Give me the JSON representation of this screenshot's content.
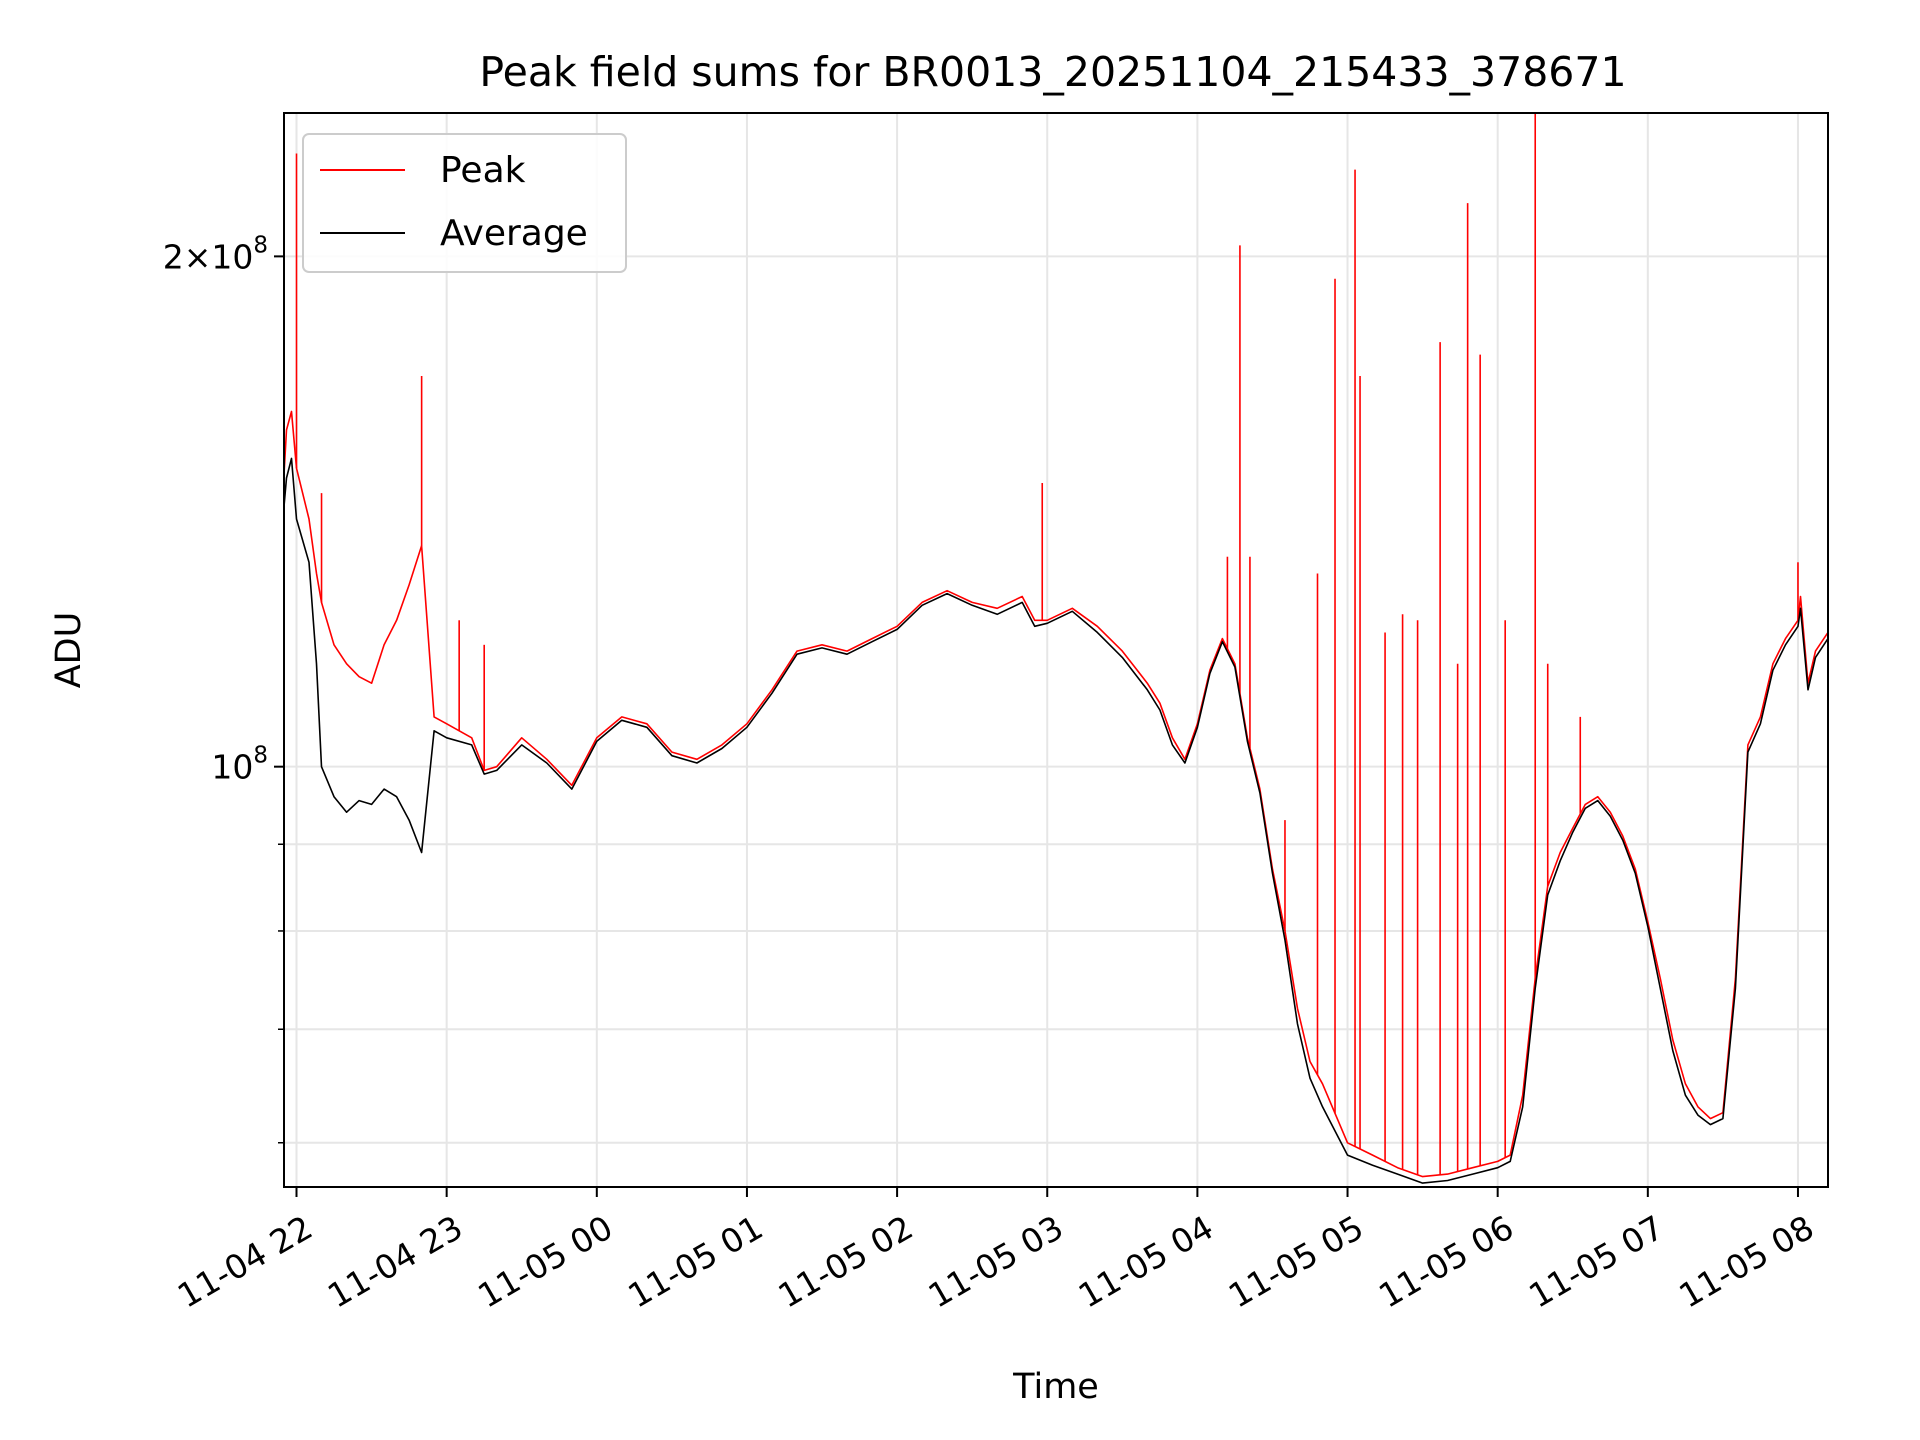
{
  "chart_data": {
    "type": "line",
    "title": "Peak field sums for BR0013_20251104_215433_378671",
    "xlabel": "Time",
    "ylabel": "ADU",
    "x_ticks": [
      "11-04 22",
      "11-04 23",
      "11-05 00",
      "11-05 01",
      "11-05 02",
      "11-05 03",
      "11-05 04",
      "11-05 05",
      "11-05 06",
      "11-05 07",
      "11-05 08"
    ],
    "y_tick_labels": [
      {
        "value": 100000000,
        "base": "10",
        "exp": "8"
      },
      {
        "value": 200000000,
        "prefix": "2×",
        "base": "10",
        "exp": "8"
      }
    ],
    "y_scale": "log",
    "ylim": [
      56500000,
      243000000
    ],
    "y_minor_ticks": [
      60000000,
      70000000,
      80000000,
      90000000
    ],
    "xlim": [
      "2025-11-04 21:55",
      "2025-11-05 08:12"
    ],
    "grid": true,
    "legend_position": "top-left",
    "series": [
      {
        "name": "Peak",
        "color": "#ff0000",
        "x": [
          "2025-11-04 21:54",
          "2025-11-04 21:56",
          "2025-11-04 21:58",
          "2025-11-04 22:00",
          "2025-11-04 22:05",
          "2025-11-04 22:08",
          "2025-11-04 22:10",
          "2025-11-04 22:15",
          "2025-11-04 22:20",
          "2025-11-04 22:25",
          "2025-11-04 22:30",
          "2025-11-04 22:35",
          "2025-11-04 22:40",
          "2025-11-04 22:45",
          "2025-11-04 22:50",
          "2025-11-04 22:55",
          "2025-11-04 23:00",
          "2025-11-04 23:10",
          "2025-11-04 23:15",
          "2025-11-04 23:20",
          "2025-11-04 23:30",
          "2025-11-04 23:40",
          "2025-11-04 23:50",
          "2025-11-05 00:00",
          "2025-11-05 00:10",
          "2025-11-05 00:20",
          "2025-11-05 00:30",
          "2025-11-05 00:40",
          "2025-11-05 00:50",
          "2025-11-05 01:00",
          "2025-11-05 01:10",
          "2025-11-05 01:20",
          "2025-11-05 01:30",
          "2025-11-05 01:40",
          "2025-11-05 01:50",
          "2025-11-05 02:00",
          "2025-11-05 02:10",
          "2025-11-05 02:20",
          "2025-11-05 02:30",
          "2025-11-05 02:40",
          "2025-11-05 02:50",
          "2025-11-05 02:55",
          "2025-11-05 03:00",
          "2025-11-05 03:10",
          "2025-11-05 03:20",
          "2025-11-05 03:30",
          "2025-11-05 03:40",
          "2025-11-05 03:45",
          "2025-11-05 03:50",
          "2025-11-05 03:55",
          "2025-11-05 04:00",
          "2025-11-05 04:05",
          "2025-11-05 04:10",
          "2025-11-05 04:15",
          "2025-11-05 04:20",
          "2025-11-05 04:25",
          "2025-11-05 04:30",
          "2025-11-05 04:35",
          "2025-11-05 04:40",
          "2025-11-05 04:45",
          "2025-11-05 04:50",
          "2025-11-05 05:00",
          "2025-11-05 05:10",
          "2025-11-05 05:20",
          "2025-11-05 05:30",
          "2025-11-05 05:40",
          "2025-11-05 05:50",
          "2025-11-05 06:00",
          "2025-11-05 06:05",
          "2025-11-05 06:10",
          "2025-11-05 06:15",
          "2025-11-05 06:20",
          "2025-11-05 06:25",
          "2025-11-05 06:30",
          "2025-11-05 06:35",
          "2025-11-05 06:40",
          "2025-11-05 06:45",
          "2025-11-05 06:50",
          "2025-11-05 06:55",
          "2025-11-05 07:00",
          "2025-11-05 07:05",
          "2025-11-05 07:10",
          "2025-11-05 07:15",
          "2025-11-05 07:20",
          "2025-11-05 07:25",
          "2025-11-05 07:30",
          "2025-11-05 07:35",
          "2025-11-05 07:40",
          "2025-11-05 07:45",
          "2025-11-05 07:50",
          "2025-11-05 07:55",
          "2025-11-05 08:00",
          "2025-11-05 08:01",
          "2025-11-05 08:04",
          "2025-11-05 08:07",
          "2025-11-05 08:12"
        ],
        "y": [
          140000000,
          158000000,
          162000000,
          150000000,
          140000000,
          130000000,
          125000000,
          118000000,
          115000000,
          113000000,
          112000000,
          118000000,
          122000000,
          128000000,
          135000000,
          107000000,
          106000000,
          104000000,
          99500000,
          100000000,
          104000000,
          101000000,
          97500000,
          104000000,
          107000000,
          106000000,
          102000000,
          101000000,
          103000000,
          106000000,
          111000000,
          117000000,
          118000000,
          117000000,
          119000000,
          121000000,
          125000000,
          127000000,
          125000000,
          124000000,
          126000000,
          122000000,
          122000000,
          124000000,
          121000000,
          117000000,
          112000000,
          109000000,
          104000000,
          101000000,
          106000000,
          114000000,
          119000000,
          115000000,
          104000000,
          97000000,
          87000000,
          80000000,
          72000000,
          67000000,
          65000000,
          60000000,
          59000000,
          58000000,
          57300000,
          57500000,
          58000000,
          58500000,
          59000000,
          64000000,
          75000000,
          85000000,
          89000000,
          92000000,
          95000000,
          96000000,
          94000000,
          91000000,
          87000000,
          81000000,
          75000000,
          69000000,
          65000000,
          63000000,
          62000000,
          62500000,
          75000000,
          103000000,
          107000000,
          115000000,
          119000000,
          122000000,
          126000000,
          112000000,
          117000000,
          120000000
        ],
        "spikes": [
          {
            "x": "2025-11-04 22:00",
            "y": 230000000
          },
          {
            "x": "2025-11-04 22:10",
            "y": 145000000
          },
          {
            "x": "2025-11-04 22:50",
            "y": 170000000
          },
          {
            "x": "2025-11-04 23:05",
            "y": 122000000
          },
          {
            "x": "2025-11-04 23:15",
            "y": 118000000
          },
          {
            "x": "2025-11-05 02:58",
            "y": 147000000
          },
          {
            "x": "2025-11-05 04:12",
            "y": 133000000
          },
          {
            "x": "2025-11-05 04:17",
            "y": 203000000
          },
          {
            "x": "2025-11-05 04:21",
            "y": 133000000
          },
          {
            "x": "2025-11-05 04:35",
            "y": 93000000
          },
          {
            "x": "2025-11-05 04:48",
            "y": 130000000
          },
          {
            "x": "2025-11-05 04:55",
            "y": 194000000
          },
          {
            "x": "2025-11-05 05:03",
            "y": 225000000
          },
          {
            "x": "2025-11-05 05:05",
            "y": 170000000
          },
          {
            "x": "2025-11-05 05:15",
            "y": 120000000
          },
          {
            "x": "2025-11-05 05:22",
            "y": 123000000
          },
          {
            "x": "2025-11-05 05:28",
            "y": 122000000
          },
          {
            "x": "2025-11-05 05:37",
            "y": 178000000
          },
          {
            "x": "2025-11-05 05:44",
            "y": 115000000
          },
          {
            "x": "2025-11-05 05:48",
            "y": 215000000
          },
          {
            "x": "2025-11-05 05:53",
            "y": 175000000
          },
          {
            "x": "2025-11-05 06:03",
            "y": 122000000
          },
          {
            "x": "2025-11-05 06:15",
            "y": 248000000
          },
          {
            "x": "2025-11-05 06:20",
            "y": 115000000
          },
          {
            "x": "2025-11-05 06:33",
            "y": 107000000
          },
          {
            "x": "2025-11-05 08:00",
            "y": 132000000
          }
        ]
      },
      {
        "name": "Average",
        "color": "#000000",
        "x": [
          "2025-11-04 21:54",
          "2025-11-04 21:56",
          "2025-11-04 21:58",
          "2025-11-04 22:00",
          "2025-11-04 22:05",
          "2025-11-04 22:08",
          "2025-11-04 22:10",
          "2025-11-04 22:15",
          "2025-11-04 22:20",
          "2025-11-04 22:25",
          "2025-11-04 22:30",
          "2025-11-04 22:35",
          "2025-11-04 22:40",
          "2025-11-04 22:45",
          "2025-11-04 22:50",
          "2025-11-04 22:55",
          "2025-11-04 23:00",
          "2025-11-04 23:10",
          "2025-11-04 23:15",
          "2025-11-04 23:20",
          "2025-11-04 23:30",
          "2025-11-04 23:40",
          "2025-11-04 23:50",
          "2025-11-05 00:00",
          "2025-11-05 00:10",
          "2025-11-05 00:20",
          "2025-11-05 00:30",
          "2025-11-05 00:40",
          "2025-11-05 00:50",
          "2025-11-05 01:00",
          "2025-11-05 01:10",
          "2025-11-05 01:20",
          "2025-11-05 01:30",
          "2025-11-05 01:40",
          "2025-11-05 01:50",
          "2025-11-05 02:00",
          "2025-11-05 02:10",
          "2025-11-05 02:20",
          "2025-11-05 02:30",
          "2025-11-05 02:40",
          "2025-11-05 02:50",
          "2025-11-05 02:55",
          "2025-11-05 03:00",
          "2025-11-05 03:10",
          "2025-11-05 03:20",
          "2025-11-05 03:30",
          "2025-11-05 03:40",
          "2025-11-05 03:45",
          "2025-11-05 03:50",
          "2025-11-05 03:55",
          "2025-11-05 04:00",
          "2025-11-05 04:05",
          "2025-11-05 04:10",
          "2025-11-05 04:15",
          "2025-11-05 04:20",
          "2025-11-05 04:25",
          "2025-11-05 04:30",
          "2025-11-05 04:35",
          "2025-11-05 04:40",
          "2025-11-05 04:45",
          "2025-11-05 04:50",
          "2025-11-05 05:00",
          "2025-11-05 05:10",
          "2025-11-05 05:20",
          "2025-11-05 05:30",
          "2025-11-05 05:40",
          "2025-11-05 05:50",
          "2025-11-05 06:00",
          "2025-11-05 06:05",
          "2025-11-05 06:10",
          "2025-11-05 06:15",
          "2025-11-05 06:20",
          "2025-11-05 06:25",
          "2025-11-05 06:30",
          "2025-11-05 06:35",
          "2025-11-05 06:40",
          "2025-11-05 06:45",
          "2025-11-05 06:50",
          "2025-11-05 06:55",
          "2025-11-05 07:00",
          "2025-11-05 07:05",
          "2025-11-05 07:10",
          "2025-11-05 07:15",
          "2025-11-05 07:20",
          "2025-11-05 07:25",
          "2025-11-05 07:30",
          "2025-11-05 07:35",
          "2025-11-05 07:40",
          "2025-11-05 07:45",
          "2025-11-05 07:50",
          "2025-11-05 07:55",
          "2025-11-05 08:00",
          "2025-11-05 08:01",
          "2025-11-05 08:04",
          "2025-11-05 08:07",
          "2025-11-05 08:12"
        ],
        "y": [
          137000000,
          148000000,
          152000000,
          140000000,
          132000000,
          115000000,
          100000000,
          96000000,
          94000000,
          95500000,
          95000000,
          97000000,
          96000000,
          93000000,
          89000000,
          105000000,
          104000000,
          103000000,
          99000000,
          99500000,
          103000000,
          100500000,
          97000000,
          103500000,
          106500000,
          105500000,
          101500000,
          100500000,
          102500000,
          105500000,
          110500000,
          116500000,
          117500000,
          116500000,
          118500000,
          120500000,
          124500000,
          126500000,
          124500000,
          123000000,
          125000000,
          121000000,
          121500000,
          123500000,
          120000000,
          116000000,
          111000000,
          108000000,
          103000000,
          100500000,
          105500000,
          113500000,
          118500000,
          114500000,
          103500000,
          96500000,
          86500000,
          79000000,
          70500000,
          65500000,
          63000000,
          59000000,
          58200000,
          57500000,
          56800000,
          57000000,
          57500000,
          58000000,
          58500000,
          63000000,
          74000000,
          84000000,
          88000000,
          91500000,
          94500000,
          95500000,
          93500000,
          90500000,
          86500000,
          80500000,
          74000000,
          68000000,
          64000000,
          62300000,
          61500000,
          62000000,
          74000000,
          102000000,
          106000000,
          114000000,
          118000000,
          121000000,
          124000000,
          111000000,
          116000000,
          119000000
        ]
      }
    ]
  }
}
